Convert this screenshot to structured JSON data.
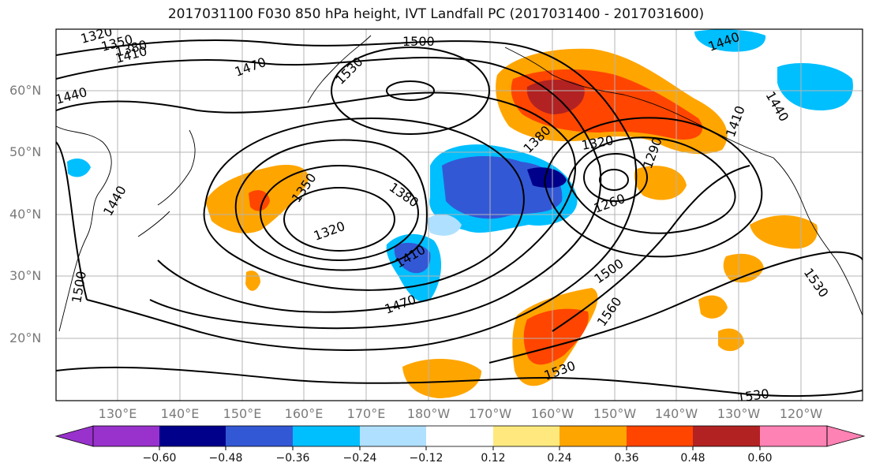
{
  "title": "2017031100 F030 850 hPa height, IVT Landfall PC (2017031400 - 2017031600)",
  "latitude_labels": [
    "60°N",
    "50°N",
    "40°N",
    "30°N",
    "20°N"
  ],
  "longitude_labels": [
    "130°E",
    "140°E",
    "150°E",
    "160°E",
    "170°E",
    "180°W",
    "170°W",
    "160°W",
    "150°W",
    "140°W",
    "130°W",
    "120°W"
  ],
  "contour_labels": [
    "1290",
    "1320",
    "1350",
    "1380",
    "1410",
    "1440",
    "1470",
    "1500",
    "1530",
    "1560",
    "1260"
  ],
  "colorbar": {
    "tick_labels": [
      "−0.60",
      "−0.48",
      "−0.36",
      "−0.24",
      "−0.12",
      "0.12",
      "0.24",
      "0.36",
      "0.48",
      "0.60"
    ],
    "colors": [
      "#9932cc",
      "#00008b",
      "#3358d6",
      "#00bfff",
      "#b0e0ff",
      "#ffffff",
      "#ffe97f",
      "#ffa500",
      "#ff4500",
      "#b22222",
      "#ff82b4"
    ]
  }
}
